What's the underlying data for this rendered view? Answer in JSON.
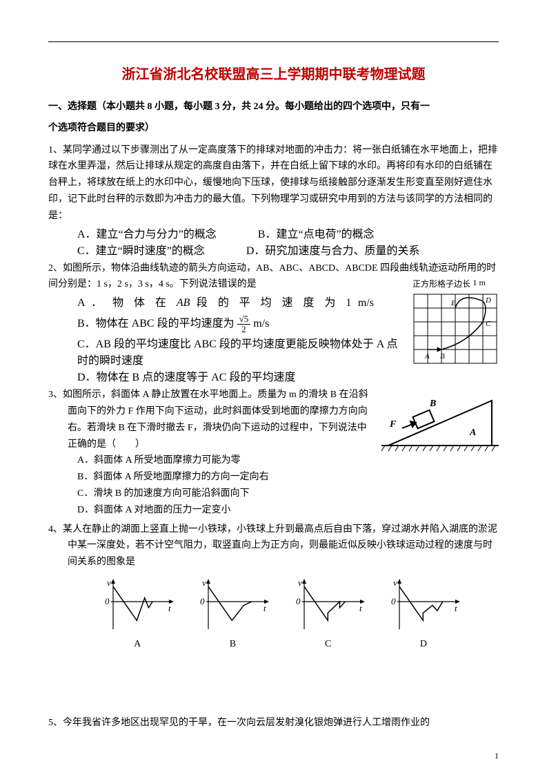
{
  "title": "浙江省浙北名校联盟高三上学期期中联考物理试题",
  "title_color": "#c00000",
  "section1_head_line1": "一、选择题（本小题共 8 小题，每小题 3 分，共 24 分。每小题给出的四个选项中，只有一",
  "section1_head_line2": "个选项符合题目的要求）",
  "q1": {
    "stem1": "1、某同学通过以下步骤测出了从一定高度落下的排球对地面的冲击力：将一张白纸铺在水平地面上，把排球在水里弄湿，然后让排球从规定的高度自由落下，并在白纸上留下球的水印。再将印有水印的白纸铺在台秤上，将球放在纸上的水印中心，缓慢地向下压球，使排球与纸接触部分逐渐发生形变直至刚好遮住水印，记下此时台秤的示数即为冲击力的最大值。下列物理学习或研究中用到的方法与该同学的方法相同的是：",
    "A": "A．建立“合力与分力”的概念",
    "B": "B．建立“点电荷”的概念",
    "C": "C．建立“瞬时速度”的概念",
    "D": "D．研究加速度与合力、质量的关系"
  },
  "q2": {
    "stem1": "2、如图所示，物体沿曲线轨迹的箭头方向运动，AB、ABC、ABCD、ABCDE 四段曲线轨迹运动所用的时间分别是：1 s，2 s，3 s，4 s。下列说法错误的是",
    "A_prefix": "A ． 物 体 在",
    "A_mid": "AB",
    "A_suffix": "段 的 平 均 速 度 为 1  m/s",
    "B_prefix": "B．物体在 ABC 段的平均速度为",
    "B_suffix": " m/s",
    "C": "C．AB 段的平均速度比 ABC 段的平均速度更能反映物体处于 A 点时的瞬时速度",
    "D": "D．物体在 B 点的速度等于 AC 段的平均速度",
    "grid_caption": "正方形格子边长",
    "grid_unit": "1 m",
    "grid": {
      "cols": 6,
      "rows": 5,
      "bg": "#ffffff",
      "line": "#000000",
      "labels": [
        "A",
        "B",
        "C",
        "D",
        "E"
      ]
    }
  },
  "q3": {
    "stem1": "3、如图所示，斜面体 A 静止放置在水平地面上。质量为 m 的滑块 B 在沿斜面向下的外力 F 作用下向下运动，此时斜面体受到地面的摩擦力方向向右。若滑块 B 在下滑时撤去 F，滑块仍向下运动的过程中，下列说法中正确的是（　　）",
    "A": "A．斜面体 A 所受地面摩擦力可能为零",
    "B": "B．斜面体 A 所受地面摩擦力的方向一定向右",
    "C": "C．滑块 B 的加速度方向可能沿斜面向下",
    "D": "D．斜面体 A 对地面的压力一定变小",
    "incline": {
      "labels": {
        "F": "F",
        "A": "A",
        "B": "B"
      },
      "colors": {
        "fill": "#ffffff",
        "stroke": "#000000"
      }
    }
  },
  "q4": {
    "stem1": "4、某人在静止的湖面上竖直上抛一小铁球，小铁球上升到最高点后自由下落，穿过湖水并陷入湖底的淤泥中某一深度处，若不计空气阻力，取竖直向上为正方向，则最能近似反映小铁球运动过程的速度与时间关系的图象是",
    "charts": {
      "type": "line",
      "axis_label_x": "t",
      "axis_label_y": "v",
      "axis_fontsize": 13,
      "stroke": "#000000",
      "background": "#ffffff",
      "line_width": 1.5,
      "options": [
        "A",
        "B",
        "C",
        "D"
      ],
      "paths": {
        "A": [
          [
            0,
            20
          ],
          [
            30,
            -25
          ],
          [
            40,
            5
          ],
          [
            45,
            -8
          ],
          [
            50,
            0
          ]
        ],
        "B": [
          [
            0,
            20
          ],
          [
            30,
            -25
          ],
          [
            45,
            -5
          ],
          [
            55,
            0
          ]
        ],
        "C": [
          [
            0,
            20
          ],
          [
            30,
            -25
          ],
          [
            30,
            -15
          ],
          [
            45,
            0
          ],
          [
            45,
            -8
          ],
          [
            52,
            0
          ]
        ],
        "D": [
          [
            0,
            20
          ],
          [
            30,
            -25
          ],
          [
            30,
            -15
          ],
          [
            42,
            -5
          ],
          [
            48,
            -12
          ],
          [
            55,
            0
          ]
        ]
      },
      "xlim": [
        0,
        70
      ],
      "ylim": [
        -30,
        25
      ]
    }
  },
  "q5": {
    "stem1": "5、今年我省许多地区出现罕见的干旱，在一次向云层发射溴化银炮弹进行人工增雨作业的"
  },
  "page_number": "1"
}
